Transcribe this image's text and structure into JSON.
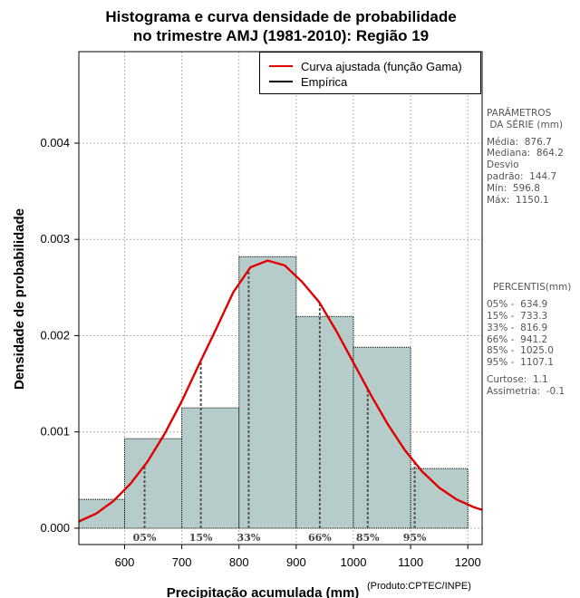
{
  "title": {
    "line1": "Histograma e curva densidade de probabilidade",
    "line2": "no trimestre AMJ (1981-2010): Região 19"
  },
  "legend": {
    "fitted": "Curva ajustada (função Gama)",
    "empirical": "Empírica"
  },
  "side_panel": {
    "params_title_1": "PARÂMETROS",
    "params_title_2": " DA SÉRIE (mm)",
    "media": "Média:  876.7",
    "mediana": "Mediana:  864.2",
    "desvio_1": "Desvio",
    "desvio_2": "padrão:  144.7",
    "min": "Mín:  596.8",
    "max": "Máx:  1150.1",
    "percentis_title": "PERCENTIS(mm)",
    "p05": "05% -  634.9",
    "p15": "15% -  733.3",
    "p33": "33% -  816.9",
    "p66": "66% -  941.2",
    "p85": "85% -  1025.0",
    "p95": "95% -  1107.1",
    "curtose": "Curtose:  1.1",
    "assimetria": "Assimetria:  -0.1"
  },
  "credit": "(Produto:CPTEC/INPE)",
  "colors": {
    "bar_fill": "#b5cccb",
    "curve": "#e00000",
    "grid": "#b0b0b0",
    "percentile": "#555555"
  },
  "chart_data": {
    "type": "histogram",
    "xlabel": "Precipitação acumulada (mm)",
    "ylabel": "Densidade de probabilidade",
    "xlim": [
      520,
      1225
    ],
    "ylim": [
      -0.00017,
      0.00495
    ],
    "x_ticks": [
      600,
      700,
      800,
      900,
      1000,
      1100,
      1200
    ],
    "x_tick_labels": [
      "600",
      "700",
      "800",
      "900",
      "1000",
      "1100",
      "1200"
    ],
    "y_ticks": [
      0,
      0.001,
      0.002,
      0.003,
      0.004
    ],
    "y_tick_labels": [
      "0.000",
      "0.001",
      "0.002",
      "0.003",
      "0.004"
    ],
    "bins": [
      {
        "start": 500,
        "end": 600,
        "density": 0.0003
      },
      {
        "start": 600,
        "end": 700,
        "density": 0.00093
      },
      {
        "start": 700,
        "end": 800,
        "density": 0.00125
      },
      {
        "start": 800,
        "end": 900,
        "density": 0.00282
      },
      {
        "start": 900,
        "end": 1000,
        "density": 0.0022
      },
      {
        "start": 1000,
        "end": 1100,
        "density": 0.00188
      },
      {
        "start": 1100,
        "end": 1200,
        "density": 0.00062
      }
    ],
    "fitted_curve": {
      "name": "Curva ajustada (função Gama)",
      "x": [
        520,
        550,
        580,
        610,
        640,
        670,
        700,
        730,
        760,
        790,
        820,
        850,
        880,
        910,
        940,
        970,
        1000,
        1030,
        1060,
        1090,
        1120,
        1150,
        1180,
        1210,
        1225
      ],
      "y": [
        7e-05,
        0.00015,
        0.00028,
        0.00046,
        0.00069,
        0.00098,
        0.00132,
        0.0017,
        0.00207,
        0.00245,
        0.00271,
        0.00278,
        0.00273,
        0.00256,
        0.00235,
        0.00205,
        0.00172,
        0.00139,
        0.00108,
        0.00081,
        0.00059,
        0.00042,
        0.0003,
        0.00022,
        0.00019
      ]
    },
    "percentiles": [
      {
        "label": "05%",
        "value": 634.9
      },
      {
        "label": "15%",
        "value": 733.3
      },
      {
        "label": "33%",
        "value": 816.9
      },
      {
        "label": "66%",
        "value": 941.2
      },
      {
        "label": "85%",
        "value": 1025.0
      },
      {
        "label": "95%",
        "value": 1107.1
      }
    ]
  }
}
